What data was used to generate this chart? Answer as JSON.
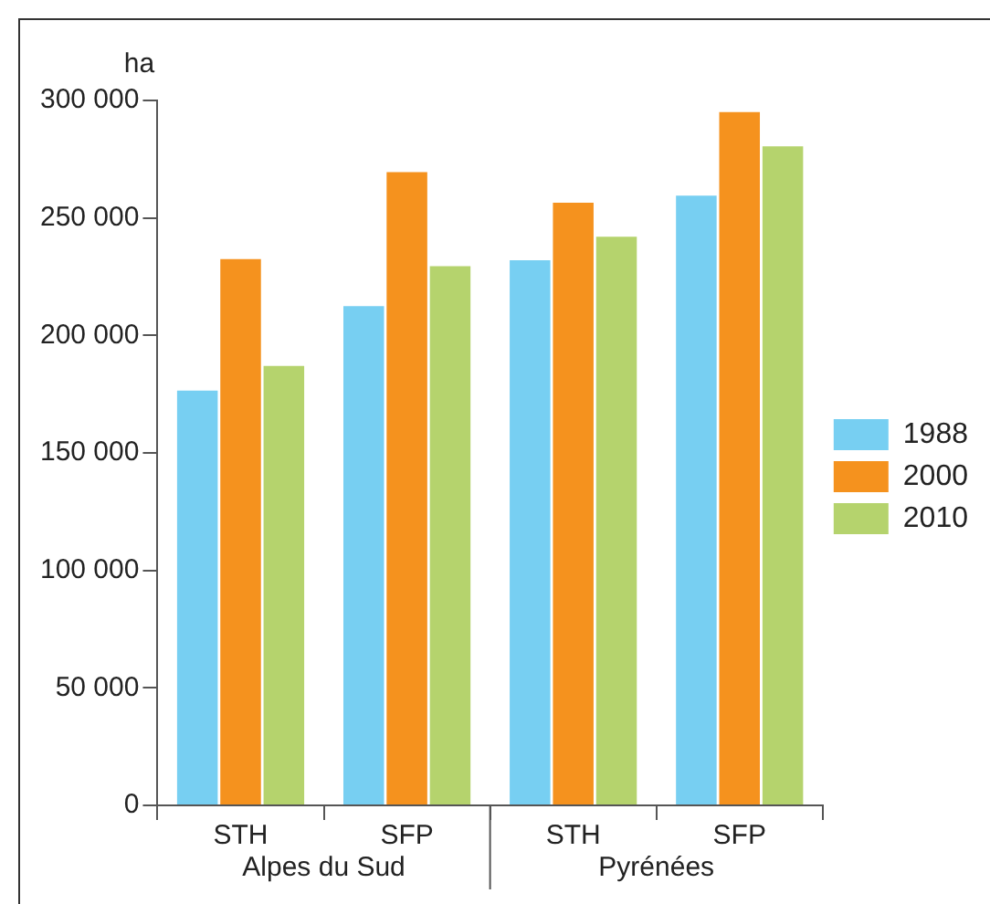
{
  "chart_data": {
    "type": "bar",
    "ylabel": "ha",
    "categories": [
      "STH",
      "SFP",
      "STH",
      "SFP"
    ],
    "series": [
      {
        "name": "1988",
        "color": "#77cff2",
        "values": [
          176500,
          212500,
          232000,
          259500
        ]
      },
      {
        "name": "2000",
        "color": "#f5921e",
        "values": [
          232500,
          269500,
          256500,
          295000
        ]
      },
      {
        "name": "2010",
        "color": "#b5d36d",
        "values": [
          187000,
          229500,
          242000,
          280500
        ]
      }
    ],
    "ylim": [
      0,
      300000
    ],
    "yticks": [
      {
        "value": 0,
        "label": "0"
      },
      {
        "value": 50000,
        "label": "50 000"
      },
      {
        "value": 100000,
        "label": "100 000"
      },
      {
        "value": 150000,
        "label": "150 000"
      },
      {
        "value": 200000,
        "label": "200 000"
      },
      {
        "value": 250000,
        "label": "250 000"
      },
      {
        "value": 300000,
        "label": "300 000"
      }
    ],
    "grid": false,
    "legend": "right",
    "annotations": [
      "Alpes du Sud",
      "Pyrénées"
    ]
  }
}
